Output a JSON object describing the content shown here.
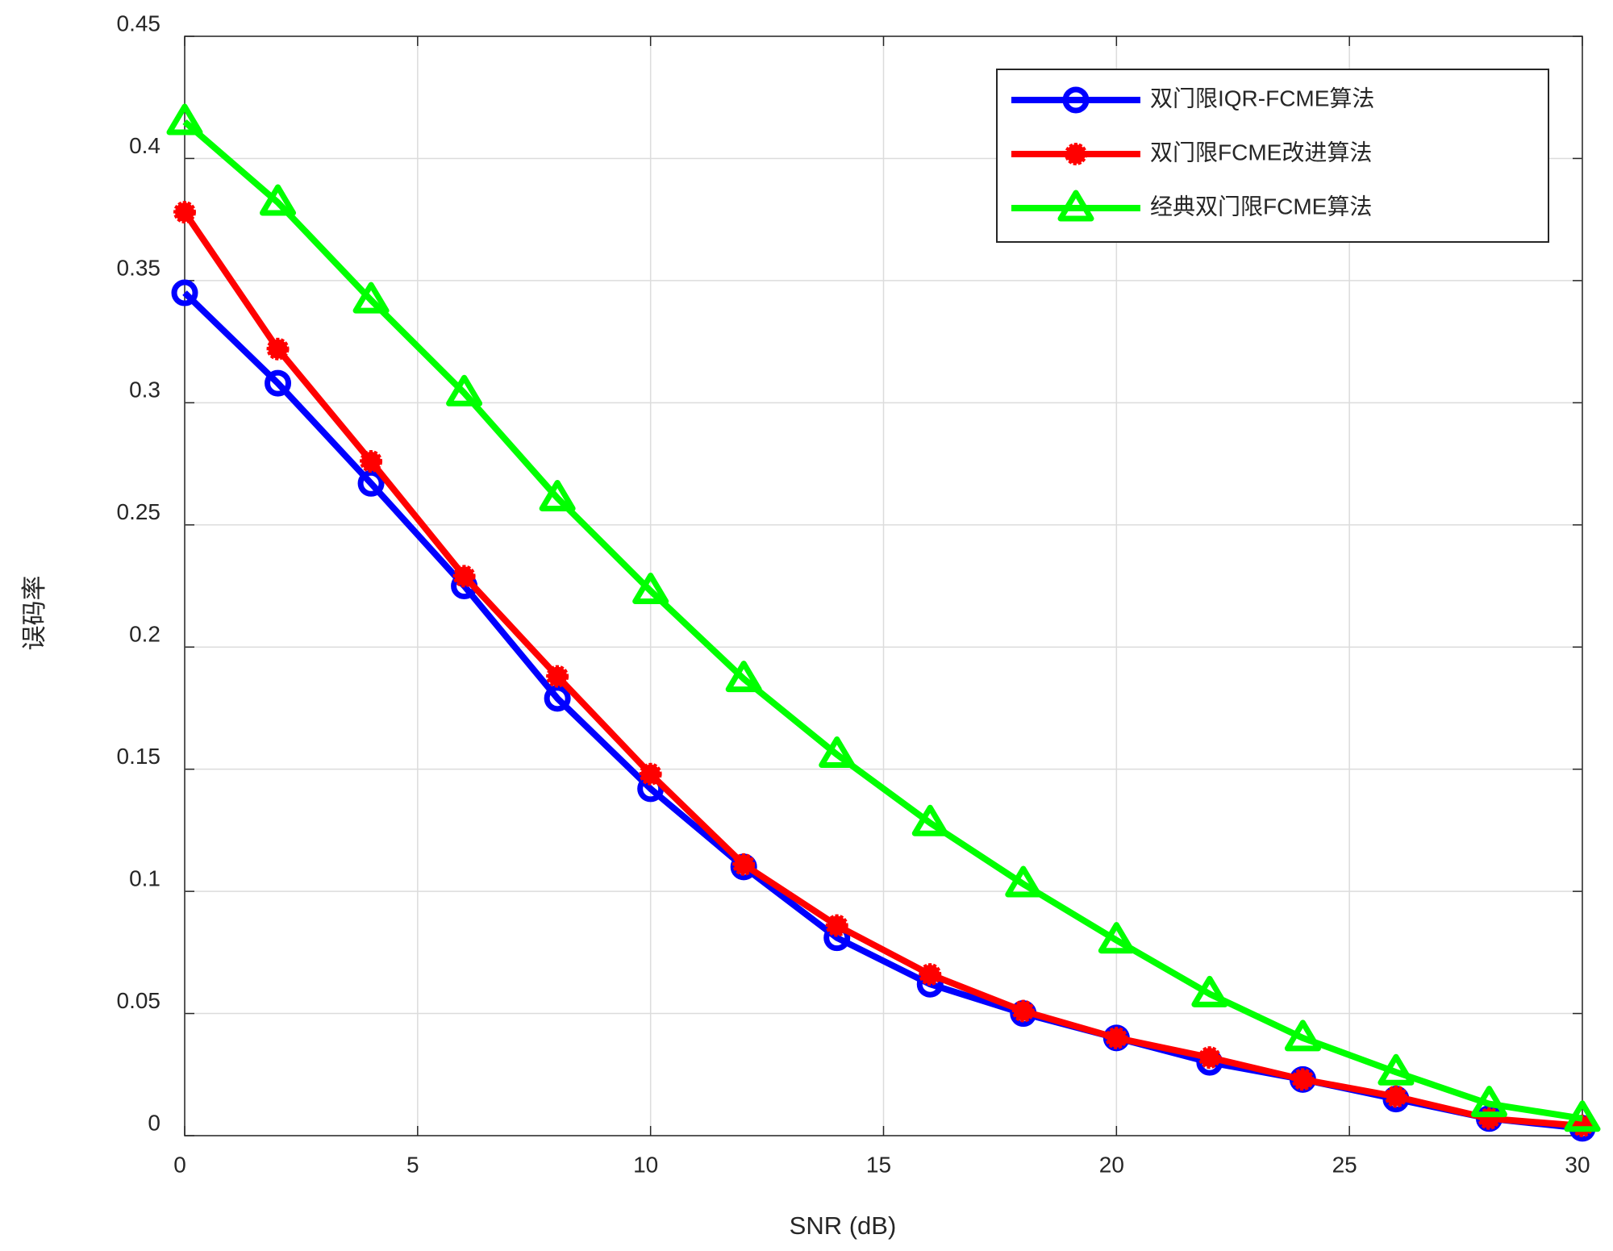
{
  "chart_data": {
    "type": "line",
    "x_label": "SNR (dB)",
    "y_label": "误码率",
    "x": [
      0,
      2,
      4,
      6,
      8,
      10,
      12,
      14,
      16,
      18,
      20,
      22,
      24,
      26,
      28,
      30
    ],
    "series": [
      {
        "name": "双门限IQR-FCME算法",
        "color": "#0000ff",
        "marker": "o",
        "values": [
          0.345,
          0.308,
          0.267,
          0.225,
          0.179,
          0.142,
          0.11,
          0.081,
          0.062,
          0.05,
          0.04,
          0.03,
          0.023,
          0.015,
          0.007,
          0.003
        ]
      },
      {
        "name": "双门限FCME改进算法",
        "color": "#ff0000",
        "marker": "*",
        "values": [
          0.378,
          0.322,
          0.276,
          0.229,
          0.188,
          0.148,
          0.111,
          0.086,
          0.066,
          0.051,
          0.04,
          0.032,
          0.023,
          0.016,
          0.007,
          0.004
        ]
      },
      {
        "name": "经典双门限FCME算法",
        "color": "#00ff00",
        "marker": "^",
        "values": [
          0.415,
          0.382,
          0.342,
          0.304,
          0.261,
          0.223,
          0.187,
          0.156,
          0.128,
          0.103,
          0.08,
          0.058,
          0.04,
          0.026,
          0.013,
          0.007
        ]
      }
    ],
    "xlim": [
      0,
      30
    ],
    "xticks": [
      0,
      5,
      10,
      15,
      20,
      25,
      30
    ],
    "ylim": [
      0,
      0.45
    ],
    "yticks": [
      0,
      0.05,
      0.1,
      0.15,
      0.2,
      0.25,
      0.3,
      0.35,
      0.4,
      0.45
    ],
    "grid": true,
    "legend": "top-right"
  }
}
